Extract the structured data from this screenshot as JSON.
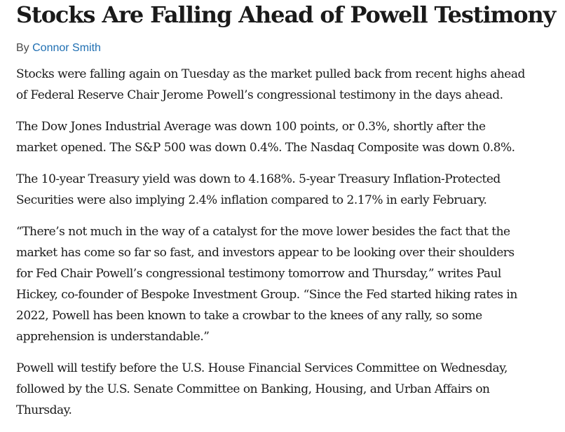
{
  "article": {
    "headline": "Stocks Are Falling Ahead of Powell Testimony",
    "byline_prefix": "By",
    "author": "Connor Smith",
    "paragraphs": [
      {
        "lines": [
          "Stocks were falling again on Tuesday as the market pulled back from recent highs ahead",
          "of Federal Reserve Chair Jerome Powell’s congressional testimony in the days ahead."
        ]
      },
      {
        "lines": [
          "The Dow Jones Industrial Average was down 100 points, or 0.3%, shortly after the",
          "market opened. The S&P 500 was down 0.4%. The Nasdaq Composite was down 0.8%."
        ]
      },
      {
        "lines": [
          "The 10-year Treasury yield was down to 4.168%. 5-year Treasury Inflation-Protected",
          "Securities were also implying 2.4% inflation compared to 2.17% in early February."
        ]
      },
      {
        "lines": [
          "“There’s not much in the way of a catalyst for the move lower besides the fact that the",
          "market has come so far so fast, and investors appear to be looking over their shoulders",
          "for Fed Chair Powell’s congressional testimony tomorrow and Thursday,” writes Paul",
          "Hickey, co-founder of Bespoke Investment Group. “Since the Fed started hiking rates in",
          "2022, Powell has been known to take a crowbar to the knees of any rally, so some",
          "apprehension is understandable.”"
        ]
      },
      {
        "lines": [
          "Powell will testify before the U.S. House Financial Services Committee on Wednesday,",
          "followed by the U.S. Senate Committee on Banking, Housing, and Urban Affairs on",
          "Thursday."
        ]
      }
    ]
  },
  "colors": {
    "text": "#1a1a1a",
    "byline_text": "#4a4a4a",
    "author_link": "#1f6fb2",
    "background": "#ffffff"
  }
}
